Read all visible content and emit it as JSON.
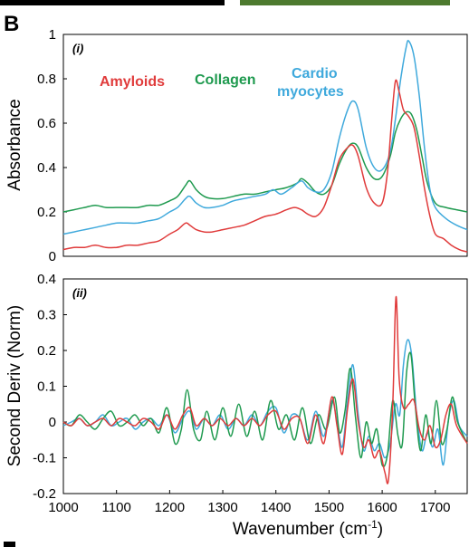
{
  "figure": {
    "panel_letter": "B",
    "colors": {
      "Amyloids": "#e03b3b",
      "Collagen": "#1f9a4f",
      "Cardio myocytes": "#3fa9dc",
      "top_bar_left": "#000000",
      "top_bar_right": "#4d7a2f"
    }
  },
  "chart_data": [
    {
      "type": "line",
      "panel_tag": "(i)",
      "ylabel": "Absorbance",
      "xlabel": "",
      "xlim": [
        1000,
        1760
      ],
      "ylim": [
        0,
        1.0
      ],
      "yticks": [
        "1",
        "0.8",
        "0.6",
        "0.4",
        "0.2",
        "0"
      ],
      "ytick_values": [
        1.0,
        0.8,
        0.6,
        0.4,
        0.2,
        0
      ],
      "legend": [
        "Amyloids",
        "Collagen",
        "Cardio",
        "myocytes"
      ],
      "series": [
        {
          "name": "Collagen",
          "color": "#1f9a4f",
          "x": [
            1000,
            1020,
            1040,
            1060,
            1080,
            1100,
            1120,
            1140,
            1160,
            1180,
            1200,
            1215,
            1230,
            1238,
            1250,
            1265,
            1280,
            1300,
            1320,
            1340,
            1360,
            1380,
            1400,
            1420,
            1440,
            1448,
            1460,
            1475,
            1490,
            1505,
            1520,
            1535,
            1545,
            1555,
            1570,
            1585,
            1600,
            1615,
            1625,
            1635,
            1645,
            1655,
            1665,
            1675,
            1685,
            1700,
            1720,
            1740,
            1760
          ],
          "y": [
            0.2,
            0.21,
            0.22,
            0.23,
            0.22,
            0.22,
            0.22,
            0.22,
            0.23,
            0.23,
            0.25,
            0.27,
            0.32,
            0.34,
            0.3,
            0.27,
            0.26,
            0.26,
            0.27,
            0.28,
            0.28,
            0.29,
            0.3,
            0.31,
            0.33,
            0.35,
            0.33,
            0.29,
            0.28,
            0.32,
            0.42,
            0.49,
            0.51,
            0.49,
            0.4,
            0.35,
            0.36,
            0.45,
            0.56,
            0.62,
            0.65,
            0.64,
            0.57,
            0.45,
            0.33,
            0.24,
            0.22,
            0.21,
            0.2
          ]
        },
        {
          "name": "Cardio myocytes",
          "color": "#3fa9dc",
          "x": [
            1000,
            1020,
            1040,
            1060,
            1080,
            1100,
            1120,
            1140,
            1160,
            1180,
            1200,
            1215,
            1230,
            1238,
            1250,
            1265,
            1280,
            1300,
            1320,
            1340,
            1360,
            1380,
            1395,
            1410,
            1430,
            1448,
            1460,
            1475,
            1490,
            1505,
            1520,
            1535,
            1545,
            1555,
            1570,
            1585,
            1600,
            1615,
            1625,
            1635,
            1645,
            1650,
            1660,
            1670,
            1680,
            1690,
            1700,
            1720,
            1740,
            1760
          ],
          "y": [
            0.1,
            0.11,
            0.12,
            0.13,
            0.14,
            0.15,
            0.15,
            0.15,
            0.16,
            0.17,
            0.2,
            0.22,
            0.26,
            0.27,
            0.24,
            0.22,
            0.22,
            0.23,
            0.25,
            0.26,
            0.27,
            0.28,
            0.3,
            0.28,
            0.31,
            0.34,
            0.31,
            0.29,
            0.3,
            0.38,
            0.54,
            0.66,
            0.7,
            0.66,
            0.49,
            0.4,
            0.39,
            0.47,
            0.62,
            0.8,
            0.94,
            0.97,
            0.9,
            0.72,
            0.48,
            0.3,
            0.22,
            0.17,
            0.14,
            0.12
          ]
        },
        {
          "name": "Amyloids",
          "color": "#e03b3b",
          "x": [
            1000,
            1020,
            1040,
            1060,
            1080,
            1100,
            1120,
            1140,
            1160,
            1180,
            1200,
            1215,
            1230,
            1238,
            1250,
            1265,
            1280,
            1300,
            1320,
            1340,
            1360,
            1380,
            1400,
            1420,
            1435,
            1448,
            1460,
            1475,
            1490,
            1505,
            1520,
            1535,
            1545,
            1555,
            1570,
            1585,
            1600,
            1610,
            1618,
            1625,
            1632,
            1640,
            1650,
            1660,
            1670,
            1680,
            1690,
            1700,
            1715,
            1730,
            1745,
            1760
          ],
          "y": [
            0.03,
            0.04,
            0.04,
            0.05,
            0.04,
            0.04,
            0.05,
            0.05,
            0.06,
            0.07,
            0.1,
            0.12,
            0.15,
            0.14,
            0.12,
            0.11,
            0.11,
            0.12,
            0.13,
            0.14,
            0.16,
            0.18,
            0.19,
            0.21,
            0.22,
            0.21,
            0.19,
            0.18,
            0.22,
            0.32,
            0.44,
            0.49,
            0.5,
            0.45,
            0.31,
            0.24,
            0.24,
            0.38,
            0.62,
            0.79,
            0.74,
            0.66,
            0.63,
            0.58,
            0.45,
            0.3,
            0.18,
            0.1,
            0.08,
            0.05,
            0.03,
            0.02
          ]
        }
      ]
    },
    {
      "type": "line",
      "panel_tag": "(ii)",
      "ylabel": "Second Deriv (Norm)",
      "xlabel": "Wavenumber (cm-1)",
      "xlabel_main": "Wavenumber (cm",
      "xlabel_sup": "-1",
      "xlabel_end": ")",
      "xlim": [
        1000,
        1760
      ],
      "ylim": [
        -0.2,
        0.4
      ],
      "yticks": [
        "0.4",
        "0.3",
        "0.2",
        "0.1",
        "0",
        "-0.1",
        "-0.2"
      ],
      "ytick_values": [
        0.4,
        0.3,
        0.2,
        0.1,
        0,
        -0.1,
        -0.2
      ],
      "xticks": [
        "1000",
        "1100",
        "1200",
        "1300",
        "1400",
        "1500",
        "1600",
        "1700"
      ],
      "xtick_values": [
        1000,
        1100,
        1200,
        1300,
        1400,
        1500,
        1600,
        1700
      ],
      "series": [
        {
          "name": "Cardio myocytes",
          "color": "#3fa9dc",
          "x": [
            1000,
            1015,
            1030,
            1045,
            1060,
            1075,
            1090,
            1105,
            1120,
            1135,
            1150,
            1165,
            1180,
            1195,
            1210,
            1225,
            1238,
            1250,
            1265,
            1280,
            1295,
            1310,
            1325,
            1340,
            1355,
            1370,
            1385,
            1400,
            1415,
            1430,
            1445,
            1460,
            1475,
            1490,
            1505,
            1515,
            1525,
            1535,
            1545,
            1555,
            1565,
            1575,
            1585,
            1595,
            1605,
            1615,
            1625,
            1633,
            1640,
            1648,
            1656,
            1665,
            1675,
            1685,
            1695,
            1705,
            1715,
            1725,
            1735,
            1745,
            1760
          ],
          "y": [
            -0.01,
            0.0,
            0.01,
            -0.01,
            0.0,
            0.02,
            -0.01,
            0.0,
            0.01,
            -0.02,
            0.0,
            0.01,
            -0.01,
            0.02,
            -0.03,
            0.01,
            0.03,
            -0.02,
            0.01,
            -0.01,
            0.02,
            -0.02,
            0.01,
            -0.01,
            0.02,
            -0.01,
            0.03,
            0.04,
            -0.03,
            0.02,
            0.01,
            -0.05,
            0.03,
            -0.04,
            0.06,
            0.0,
            -0.07,
            0.06,
            0.16,
            0.02,
            -0.08,
            -0.04,
            -0.08,
            -0.06,
            -0.1,
            -0.06,
            0.05,
            0.02,
            0.16,
            0.23,
            0.18,
            0.02,
            -0.08,
            -0.03,
            -0.07,
            -0.02,
            -0.12,
            0.01,
            0.06,
            -0.01,
            -0.04
          ]
        },
        {
          "name": "Collagen",
          "color": "#1f9a4f",
          "x": [
            1000,
            1015,
            1030,
            1045,
            1060,
            1075,
            1090,
            1105,
            1120,
            1135,
            1150,
            1165,
            1180,
            1195,
            1210,
            1222,
            1233,
            1245,
            1258,
            1270,
            1285,
            1300,
            1315,
            1330,
            1345,
            1360,
            1375,
            1390,
            1405,
            1420,
            1435,
            1450,
            1465,
            1480,
            1495,
            1510,
            1520,
            1530,
            1540,
            1550,
            1560,
            1570,
            1580,
            1590,
            1600,
            1610,
            1620,
            1630,
            1638,
            1646,
            1654,
            1662,
            1672,
            1682,
            1692,
            1702,
            1712,
            1722,
            1732,
            1742,
            1760
          ],
          "y": [
            0.0,
            -0.01,
            0.02,
            0.0,
            -0.02,
            0.01,
            0.03,
            -0.01,
            0.0,
            0.02,
            -0.01,
            0.01,
            -0.03,
            0.04,
            -0.06,
            -0.02,
            0.09,
            -0.02,
            -0.05,
            0.03,
            -0.05,
            0.04,
            -0.04,
            0.05,
            -0.04,
            0.03,
            -0.05,
            0.06,
            -0.02,
            0.02,
            -0.05,
            0.04,
            -0.06,
            0.02,
            -0.02,
            0.07,
            -0.03,
            0.03,
            0.15,
            0.01,
            -0.1,
            0.0,
            -0.06,
            -0.02,
            -0.12,
            -0.09,
            0.06,
            -0.04,
            -0.06,
            0.14,
            0.19,
            0.05,
            -0.08,
            0.02,
            -0.06,
            0.06,
            -0.06,
            -0.02,
            0.07,
            0.0,
            -0.06
          ]
        },
        {
          "name": "Amyloids",
          "color": "#e03b3b",
          "x": [
            1000,
            1015,
            1030,
            1045,
            1060,
            1075,
            1090,
            1105,
            1120,
            1135,
            1150,
            1165,
            1180,
            1195,
            1210,
            1225,
            1238,
            1250,
            1265,
            1280,
            1295,
            1310,
            1325,
            1340,
            1355,
            1370,
            1385,
            1400,
            1415,
            1430,
            1445,
            1460,
            1475,
            1490,
            1505,
            1515,
            1525,
            1535,
            1545,
            1555,
            1565,
            1575,
            1585,
            1595,
            1605,
            1612,
            1620,
            1626,
            1632,
            1640,
            1650,
            1660,
            1670,
            1680,
            1690,
            1700,
            1710,
            1720,
            1730,
            1740,
            1760
          ],
          "y": [
            0.0,
            -0.01,
            0.01,
            -0.01,
            0.0,
            0.01,
            -0.01,
            0.01,
            0.0,
            -0.01,
            0.01,
            0.0,
            -0.02,
            0.02,
            -0.02,
            0.02,
            0.04,
            -0.01,
            0.01,
            -0.01,
            0.01,
            -0.01,
            0.01,
            -0.01,
            0.01,
            -0.01,
            0.02,
            0.03,
            -0.02,
            0.01,
            0.01,
            -0.06,
            0.02,
            -0.06,
            0.07,
            -0.01,
            -0.09,
            0.04,
            0.12,
            0.0,
            -0.07,
            -0.05,
            -0.1,
            -0.08,
            -0.14,
            -0.16,
            0.05,
            0.35,
            0.12,
            0.04,
            0.05,
            0.06,
            -0.02,
            -0.05,
            -0.01,
            -0.07,
            -0.05,
            0.02,
            0.05,
            -0.01,
            -0.06
          ]
        }
      ]
    }
  ]
}
